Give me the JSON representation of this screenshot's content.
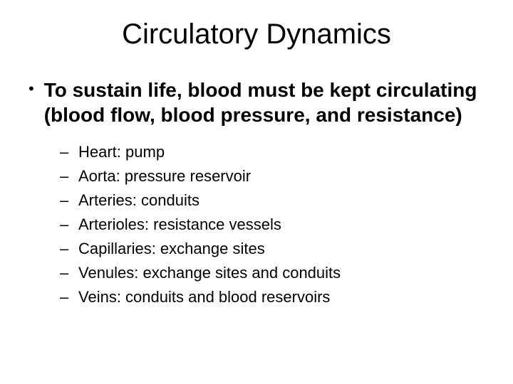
{
  "title": "Circulatory Dynamics",
  "main_point": "To sustain life, blood must be kept circulating (blood flow, blood pressure, and resistance)",
  "sub_items": [
    "Heart: pump",
    "Aorta: pressure reservoir",
    "Arteries: conduits",
    "Arterioles: resistance vessels",
    "Capillaries: exchange sites",
    "Venules: exchange sites and conduits",
    "Veins: conduits and blood reservoirs"
  ],
  "style": {
    "background_color": "#ffffff",
    "text_color": "#000000",
    "font_family": "Arial",
    "title_fontsize": 40,
    "title_weight": "normal",
    "main_fontsize": 28,
    "main_weight": "bold",
    "sub_fontsize": 22,
    "bullet_char": "•",
    "dash_char": "–",
    "slide_width": 720,
    "slide_height": 540
  }
}
